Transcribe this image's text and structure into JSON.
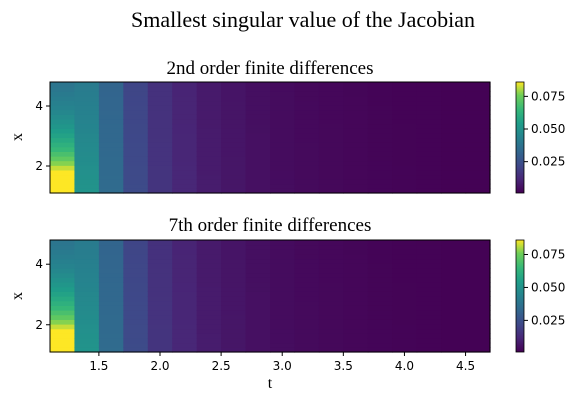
{
  "figure": {
    "suptitle": "Smallest singular value of the Jacobian"
  },
  "colormap": "viridis",
  "chart_data": [
    {
      "type": "heatmap",
      "title": "2nd order finite differences",
      "xlabel": "",
      "ylabel": "x",
      "xlim": [
        1.1,
        4.7
      ],
      "ylim": [
        1.1,
        4.8
      ],
      "x_centers": [
        1.2,
        1.4,
        1.6,
        1.8,
        2.0,
        2.2,
        2.4,
        2.6,
        2.8,
        3.0,
        3.2,
        3.4,
        3.6,
        3.8,
        4.0,
        4.2,
        4.4,
        4.6
      ],
      "y_range_description_values": [
        1.1,
        4.8
      ],
      "yticks": [
        2,
        4
      ],
      "xticks_shown": false,
      "colorbar": {
        "ticks": [
          0.025,
          0.05,
          0.075
        ],
        "tick_labels": [
          "0.025",
          "0.050",
          "0.075"
        ],
        "vmin": 0.001,
        "vmax": 0.086
      },
      "column_base_values": [
        0.052,
        0.045,
        0.033,
        0.022,
        0.015,
        0.011,
        0.008,
        0.0065,
        0.005,
        0.004,
        0.0033,
        0.0028,
        0.0024,
        0.002,
        0.0017,
        0.0015,
        0.0013,
        0.0012
      ],
      "first_column_peak_value": 0.086
    },
    {
      "type": "heatmap",
      "title": "7th order finite differences",
      "xlabel": "t",
      "ylabel": "x",
      "xlim": [
        1.1,
        4.7
      ],
      "ylim": [
        1.1,
        4.8
      ],
      "x_centers": [
        1.2,
        1.4,
        1.6,
        1.8,
        2.0,
        2.2,
        2.4,
        2.6,
        2.8,
        3.0,
        3.2,
        3.4,
        3.6,
        3.8,
        4.0,
        4.2,
        4.4,
        4.6
      ],
      "xticks": [
        1.5,
        2.0,
        2.5,
        3.0,
        3.5,
        4.0,
        4.5
      ],
      "xtick_labels": [
        "1.5",
        "2.0",
        "2.5",
        "3.0",
        "3.5",
        "4.0",
        "4.5"
      ],
      "yticks": [
        2,
        4
      ],
      "xticks_shown": true,
      "colorbar": {
        "ticks": [
          0.025,
          0.05,
          0.075
        ],
        "tick_labels": [
          "0.025",
          "0.050",
          "0.075"
        ],
        "vmin": 0.001,
        "vmax": 0.086
      },
      "column_base_values": [
        0.052,
        0.045,
        0.033,
        0.022,
        0.015,
        0.011,
        0.008,
        0.0065,
        0.005,
        0.004,
        0.0033,
        0.0028,
        0.0024,
        0.002,
        0.0017,
        0.0015,
        0.0013,
        0.0012
      ],
      "first_column_peak_value": 0.086
    }
  ]
}
